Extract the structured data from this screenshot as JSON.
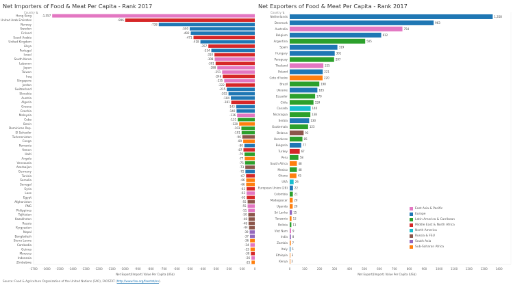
{
  "page": {
    "source_prefix": "Source: Food & Agriculture Organization of the United Nations (FAO), FAOSTAT (",
    "source_link": "http://www.fao.org/faostat/en",
    "source_suffix": ")."
  },
  "regions": {
    "EAP": {
      "label": "East Asia & Pacific",
      "color": "#e377c2"
    },
    "EU": {
      "label": "Europe",
      "color": "#1f77b4"
    },
    "LAC": {
      "label": "Latin America & Carribean",
      "color": "#2ca02c"
    },
    "MENA": {
      "label": "Middle East & North Africa",
      "color": "#d62728"
    },
    "NA": {
      "label": "North America",
      "color": "#17becf"
    },
    "RUS": {
      "label": "Russia & FSU",
      "color": "#8c564b"
    },
    "SA": {
      "label": "South Asia",
      "color": "#9467bd"
    },
    "SSA": {
      "label": "Sub-Saharan Africa",
      "color": "#ff7f0e"
    }
  },
  "legend_order": [
    "EAP",
    "EU",
    "LAC",
    "MENA",
    "NA",
    "RUS",
    "SA",
    "SSA"
  ],
  "chart_data": [
    {
      "type": "bar",
      "orientation": "horizontal",
      "title": "Net Importers of Food & Meat Per Capita - Rank 2017",
      "row_header": "Country",
      "sort_icon": "sort-ascending-icon",
      "xlabel": "Net Export/(Import) Value Per Capita (US$)",
      "xlim": [
        -1700,
        0
      ],
      "xticks": [
        -1700,
        -1600,
        -1500,
        -1400,
        -1300,
        -1200,
        -1100,
        -1000,
        -900,
        -800,
        -700,
        -600,
        -500,
        -400,
        -300,
        -200,
        -100,
        0
      ],
      "categories": [
        "Hong Kong",
        "United Arab Emirates",
        "Norway",
        "Sweden",
        "Finland",
        "Saudi Arabia",
        "United Kingdom",
        "Libya",
        "Portugal",
        "Israel",
        "South Korea",
        "Lebanon",
        "Japan",
        "Taiwan",
        "Iraq",
        "Singapore",
        "Jordan",
        "Switzerland",
        "Slovakia",
        "Austria",
        "Algeria",
        "Greece",
        "Czechia",
        "Malaysia",
        "Cuba",
        "Benin",
        "Dominican Rep.",
        "El Salvador",
        "Turkmenistan",
        "Congo",
        "Romania",
        "Yemen",
        "Haiti",
        "Angola",
        "Venezuela",
        "Azerbaijan",
        "Germany",
        "Tunisia",
        "Somalia",
        "Senegal",
        "Syria",
        "Laos",
        "Egypt",
        "Afghanistan",
        "PNG",
        "Philippines",
        "Tajikistan",
        "Kazakhstan",
        "Russia",
        "Kyrgyzstan",
        "Nepal",
        "Bangladesh",
        "Sierra Leone",
        "Cambodia",
        "Guinea",
        "Morocco",
        "Indonesia",
        "Zimbabwe"
      ],
      "values": [
        -1557,
        -996,
        -738,
        -500,
        -492,
        -471,
        -418,
        -357,
        -334,
        -310,
        -308,
        -301,
        -288,
        -251,
        -246,
        -235,
        -222,
        -215,
        -202,
        -184,
        -181,
        -143,
        -140,
        -136,
        -131,
        -120,
        -103,
        -101,
        -96,
        -89,
        -80,
        -87,
        -79,
        -77,
        -75,
        -73,
        -72,
        -67,
        -66,
        -66,
        -63,
        -63,
        -62,
        -55,
        -55,
        -51,
        -50,
        -48,
        -48,
        -44,
        -39,
        -37,
        -36,
        -34,
        -33,
        -30,
        -26,
        -25
      ],
      "labels": [
        "-1,557",
        "-996",
        "-738",
        "-500",
        "-492",
        "-471",
        "-418",
        "-357",
        "-334",
        "-310",
        "-308",
        "-301",
        "-288",
        "-251",
        "-246",
        "-235",
        "-222",
        "-215",
        "-202",
        "-184",
        "-181",
        "-143",
        "-140",
        "-136",
        "-131",
        "-120",
        "-103",
        "-101",
        "-96",
        "-89",
        "-80",
        "-87",
        "-79",
        "-77",
        "-75",
        "-73",
        "-72",
        "-67",
        "-66",
        "-66",
        "-63",
        "-63",
        "-62",
        "-55",
        "-55",
        "-51",
        "-50",
        "-48",
        "-48",
        "-44",
        "-39",
        "-37",
        "-36",
        "-34",
        "-33",
        "-30",
        "-26",
        "-25"
      ],
      "region": [
        "EAP",
        "MENA",
        "EU",
        "EU",
        "EU",
        "MENA",
        "EU",
        "MENA",
        "EU",
        "MENA",
        "EAP",
        "MENA",
        "EAP",
        "EAP",
        "MENA",
        "EAP",
        "MENA",
        "EU",
        "EU",
        "EU",
        "MENA",
        "EU",
        "EU",
        "EAP",
        "LAC",
        "SSA",
        "LAC",
        "LAC",
        "RUS",
        "SSA",
        "EU",
        "MENA",
        "LAC",
        "SSA",
        "LAC",
        "RUS",
        "EU",
        "MENA",
        "SSA",
        "SSA",
        "MENA",
        "EAP",
        "MENA",
        "RUS",
        "EAP",
        "EAP",
        "RUS",
        "RUS",
        "RUS",
        "RUS",
        "SA",
        "SA",
        "SSA",
        "EAP",
        "SSA",
        "MENA",
        "EAP",
        "SSA"
      ]
    },
    {
      "type": "bar",
      "orientation": "horizontal",
      "title": "Net Exporters of Food & Meat Per Capita - Rank 2017",
      "row_header": "Country",
      "sort_icon": "sort-descending-icon",
      "xlabel": "Net Export/(Import) Value Per Capita (US$)",
      "xlim": [
        0,
        1480
      ],
      "xticks": [
        0,
        100,
        200,
        300,
        400,
        500,
        600,
        700,
        800,
        900,
        1000,
        1100,
        1200,
        1300,
        1400
      ],
      "categories": [
        "Netherlands",
        "Denmark",
        "Australia",
        "Belgium",
        "Argentina",
        "Spain",
        "Hungary",
        "Paraguay",
        "Thailand",
        "Poland",
        "Cote d'Ivoire",
        "Brazil",
        "Ukraine",
        "Ecuador",
        "Chile",
        "Canada",
        "Nicaragua",
        "Serbia",
        "Guatemala",
        "Belarus",
        "Honduras",
        "Bulgaria",
        "Turkey",
        "Peru",
        "South Africa",
        "Mexico",
        "Ghana",
        "USA",
        "European Union (28)",
        "Colombia",
        "Madagascar",
        "Uganda",
        "Sri Lanka",
        "Tanzania",
        "Bolivia",
        "Viet Nam",
        "India",
        "Zambia",
        "Italy",
        "Ethiopia",
        "Kenya"
      ],
      "values": [
        1358,
        963,
        754,
        612,
        505,
        319,
        301,
        297,
        225,
        221,
        220,
        198,
        185,
        170,
        159,
        140,
        138,
        130,
        123,
        93,
        85,
        77,
        67,
        58,
        48,
        48,
        45,
        26,
        22,
        21,
        20,
        20,
        15,
        12,
        11,
        9,
        8,
        7,
        5,
        3,
        2
      ],
      "labels": [
        "1,358",
        "963",
        "754",
        "612",
        "505",
        "319",
        "301",
        "297",
        "225",
        "221",
        "220",
        "198",
        "185",
        "170",
        "159",
        "140",
        "138",
        "130",
        "123",
        "93",
        "85",
        "77",
        "67",
        "58",
        "48",
        "48",
        "45",
        "26",
        "22",
        "21",
        "20",
        "20",
        "15",
        "12",
        "11",
        "9",
        "8",
        "7",
        "5",
        "3",
        "2"
      ],
      "region": [
        "EU",
        "EU",
        "EAP",
        "EU",
        "LAC",
        "EU",
        "EU",
        "LAC",
        "EAP",
        "EU",
        "SSA",
        "LAC",
        "EU",
        "LAC",
        "LAC",
        "NA",
        "LAC",
        "EU",
        "LAC",
        "RUS",
        "LAC",
        "EU",
        "MENA",
        "LAC",
        "SSA",
        "LAC",
        "SSA",
        "NA",
        "EU",
        "LAC",
        "SSA",
        "SSA",
        "SA",
        "SSA",
        "LAC",
        "EAP",
        "SA",
        "SSA",
        "EU",
        "SSA",
        "SSA"
      ]
    }
  ]
}
